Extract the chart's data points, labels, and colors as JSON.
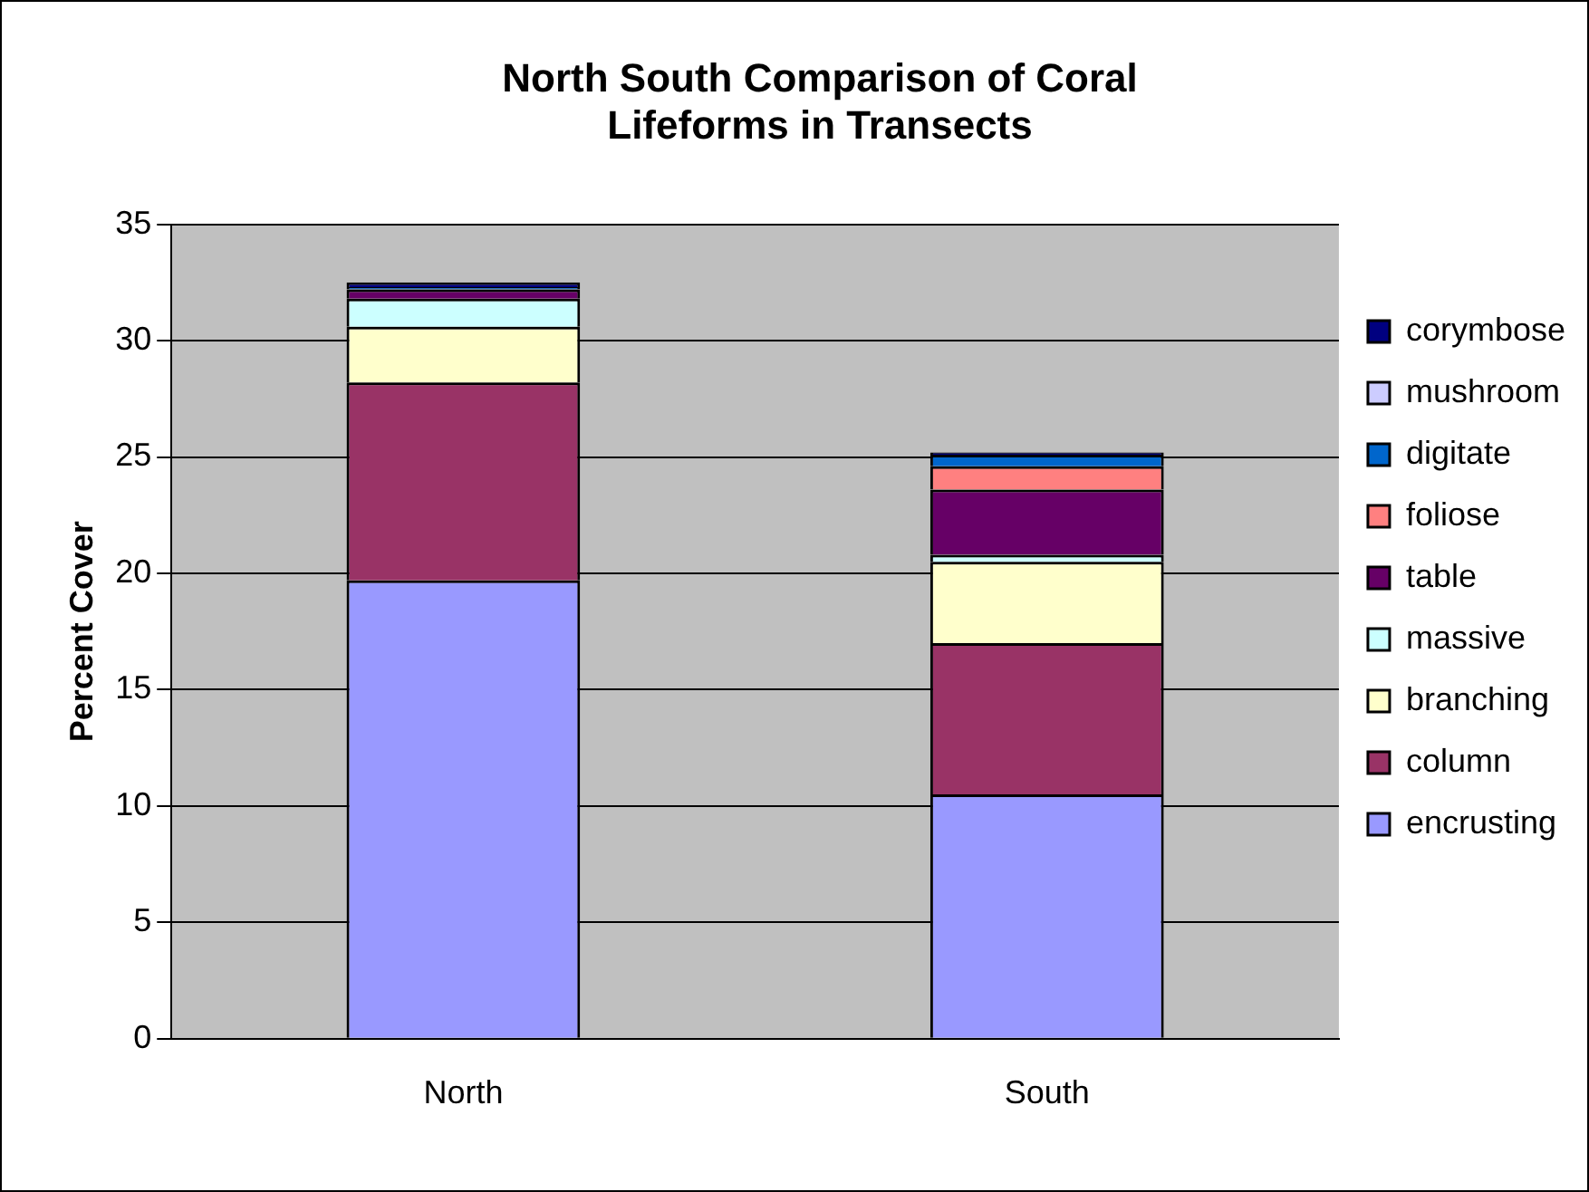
{
  "chart_data": {
    "type": "bar",
    "title": "North South Comparison of Coral Lifeforms in Transects",
    "ylabel": "Percent Cover",
    "categories": [
      "North",
      "South"
    ],
    "stacked": true,
    "ylim": [
      0,
      35
    ],
    "yticks": [
      0,
      5,
      10,
      15,
      20,
      25,
      30,
      35
    ],
    "grid": "y",
    "legend": "right",
    "series": [
      {
        "name": "encrusting",
        "color": "#9999ff",
        "values": [
          19.7,
          10.5
        ]
      },
      {
        "name": "column",
        "color": "#993366",
        "values": [
          8.5,
          6.5
        ]
      },
      {
        "name": "branching",
        "color": "#ffffcc",
        "values": [
          2.4,
          3.5
        ]
      },
      {
        "name": "massive",
        "color": "#ccffff",
        "values": [
          1.2,
          0.3
        ]
      },
      {
        "name": "table",
        "color": "#660066",
        "values": [
          0.4,
          2.8
        ]
      },
      {
        "name": "foliose",
        "color": "#ff8080",
        "values": [
          0,
          1
        ]
      },
      {
        "name": "digitate",
        "color": "#0066cc",
        "values": [
          0.1,
          0.5
        ]
      },
      {
        "name": "mushroom",
        "color": "#ccccff",
        "values": [
          null,
          null
        ]
      },
      {
        "name": "corymbose",
        "color": "#000080",
        "values": [
          0.2,
          0.1
        ]
      }
    ]
  }
}
